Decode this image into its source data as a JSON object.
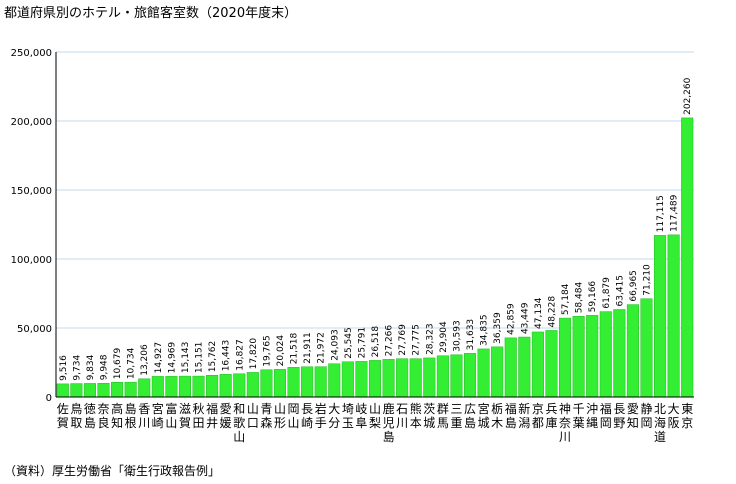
{
  "title": "都道府県別のホテル・旅館客室数（2020年度末）",
  "source": "（資料）厚生労働省「衛生行政報告例」",
  "colors": {
    "bar": "#33ee33",
    "bar_stroke": "#22bb22",
    "grid": "#c0d8ec",
    "axis": "#000000"
  },
  "chart_data": {
    "type": "bar",
    "title": "都道府県別のホテル・旅館客室数（2020年度末）",
    "xlabel": "",
    "ylabel": "",
    "ylim": [
      0,
      250000
    ],
    "yticks": [
      0,
      50000,
      100000,
      150000,
      200000,
      250000
    ],
    "ytick_labels": [
      "0",
      "50,000",
      "100,000",
      "150,000",
      "200,000",
      "250,000"
    ],
    "grid": true,
    "legend": "none",
    "categories": [
      "佐賀",
      "鳥取",
      "徳島",
      "奈良",
      "高知",
      "島根",
      "香川",
      "宮崎",
      "富山",
      "滋賀",
      "秋田",
      "福井",
      "愛媛",
      "和歌山",
      "山口",
      "青森",
      "山形",
      "岡山",
      "長崎",
      "岩手",
      "大分",
      "埼玉",
      "岐阜",
      "山梨",
      "鹿児島",
      "石川",
      "熊本",
      "茨城",
      "群馬",
      "三重",
      "広島",
      "宮城",
      "栃木",
      "福島",
      "新潟",
      "京都",
      "兵庫",
      "神奈川",
      "千葉",
      "沖縄",
      "福岡",
      "長野",
      "愛知",
      "静岡",
      "北海道",
      "大阪",
      "東京"
    ],
    "values": [
      9516,
      9734,
      9834,
      9948,
      10679,
      10734,
      13206,
      14927,
      14969,
      15143,
      15151,
      15762,
      16443,
      16827,
      17820,
      19765,
      20024,
      21518,
      21911,
      21972,
      24093,
      25545,
      25791,
      26518,
      27266,
      27769,
      27775,
      28323,
      29904,
      30593,
      31633,
      34835,
      36359,
      42859,
      43449,
      47134,
      48228,
      57184,
      58484,
      59166,
      61879,
      63415,
      66965,
      71210,
      117115,
      117489,
      202260
    ],
    "value_labels": [
      "9,516",
      "9,734",
      "9,834",
      "9,948",
      "10,679",
      "10,734",
      "13,206",
      "14,927",
      "14,969",
      "15,143",
      "15,151",
      "15,762",
      "16,443",
      "16,827",
      "17,820",
      "19,765",
      "20,024",
      "21,518",
      "21,911",
      "21,972",
      "24,093",
      "25,545",
      "25,791",
      "26,518",
      "27,266",
      "27,769",
      "27,775",
      "28,323",
      "29,904",
      "30,593",
      "31,633",
      "34,835",
      "36,359",
      "42,859",
      "43,449",
      "47,134",
      "48,228",
      "57,184",
      "58,484",
      "59,166",
      "61,879",
      "63,415",
      "66,965",
      "71,210",
      "117,115",
      "117,489",
      "202,260"
    ]
  }
}
